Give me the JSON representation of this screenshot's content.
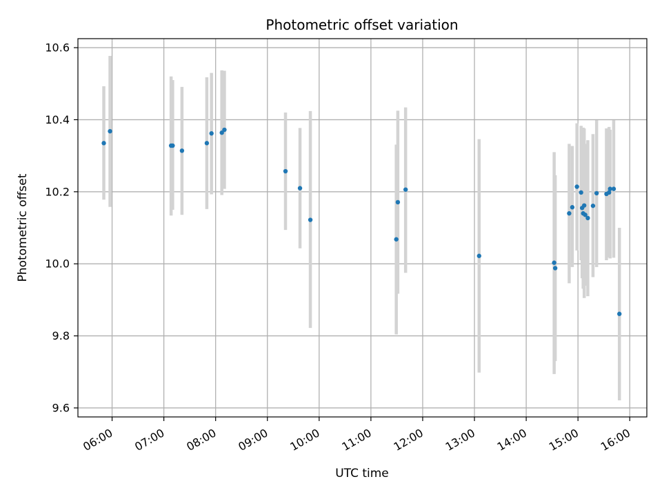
{
  "chart_data": {
    "type": "scatter",
    "title": "Photometric offset variation",
    "xlabel": "UTC time",
    "ylabel": "Photometric offset",
    "x_unit": "hour",
    "xlim": [
      5.34,
      16.33
    ],
    "ylim": [
      9.575,
      10.625
    ],
    "grid": true,
    "legend": "none",
    "x_ticks": [
      {
        "value": 6,
        "label": "06:00"
      },
      {
        "value": 7,
        "label": "07:00"
      },
      {
        "value": 8,
        "label": "08:00"
      },
      {
        "value": 9,
        "label": "09:00"
      },
      {
        "value": 10,
        "label": "10:00"
      },
      {
        "value": 11,
        "label": "11:00"
      },
      {
        "value": 12,
        "label": "12:00"
      },
      {
        "value": 13,
        "label": "13:00"
      },
      {
        "value": 14,
        "label": "14:00"
      },
      {
        "value": 15,
        "label": "15:00"
      },
      {
        "value": 16,
        "label": "16:00"
      }
    ],
    "y_ticks": [
      {
        "value": 9.6,
        "label": "9.6"
      },
      {
        "value": 9.8,
        "label": "9.8"
      },
      {
        "value": 10.0,
        "label": "10.0"
      },
      {
        "value": 10.2,
        "label": "10.2"
      },
      {
        "value": 10.4,
        "label": "10.4"
      },
      {
        "value": 10.6,
        "label": "10.6"
      }
    ],
    "colors": {
      "point": "#1f77b4",
      "error_bar": "#d3d3d3",
      "grid": "#b0b0b0"
    },
    "series": [
      {
        "points": [
          {
            "x": 5.84,
            "y": 10.335,
            "ylow": 10.178,
            "yhigh": 10.493
          },
          {
            "x": 5.96,
            "y": 10.368,
            "ylow": 10.158,
            "yhigh": 10.577
          },
          {
            "x": 7.14,
            "y": 10.328,
            "ylow": 10.134,
            "yhigh": 10.52
          },
          {
            "x": 7.17,
            "y": 10.328,
            "ylow": 10.15,
            "yhigh": 10.51
          },
          {
            "x": 7.35,
            "y": 10.314,
            "ylow": 10.136,
            "yhigh": 10.491
          },
          {
            "x": 7.83,
            "y": 10.335,
            "ylow": 10.152,
            "yhigh": 10.518
          },
          {
            "x": 7.92,
            "y": 10.362,
            "ylow": 10.193,
            "yhigh": 10.53
          },
          {
            "x": 8.12,
            "y": 10.364,
            "ylow": 10.191,
            "yhigh": 10.537
          },
          {
            "x": 8.17,
            "y": 10.372,
            "ylow": 10.208,
            "yhigh": 10.536
          },
          {
            "x": 9.35,
            "y": 10.257,
            "ylow": 10.094,
            "yhigh": 10.42
          },
          {
            "x": 9.63,
            "y": 10.21,
            "ylow": 10.043,
            "yhigh": 10.377
          },
          {
            "x": 9.83,
            "y": 10.122,
            "ylow": 9.822,
            "yhigh": 10.424
          },
          {
            "x": 11.49,
            "y": 10.068,
            "ylow": 9.804,
            "yhigh": 10.331
          },
          {
            "x": 11.52,
            "y": 10.171,
            "ylow": 9.917,
            "yhigh": 10.425
          },
          {
            "x": 11.67,
            "y": 10.206,
            "ylow": 9.975,
            "yhigh": 10.434
          },
          {
            "x": 13.09,
            "y": 10.022,
            "ylow": 9.698,
            "yhigh": 10.346
          },
          {
            "x": 14.54,
            "y": 10.003,
            "ylow": 9.694,
            "yhigh": 10.31
          },
          {
            "x": 14.56,
            "y": 9.988,
            "ylow": 9.73,
            "yhigh": 10.246
          },
          {
            "x": 14.83,
            "y": 10.14,
            "ylow": 9.946,
            "yhigh": 10.333
          },
          {
            "x": 14.89,
            "y": 10.157,
            "ylow": 9.991,
            "yhigh": 10.327
          },
          {
            "x": 14.98,
            "y": 10.214,
            "ylow": 10.037,
            "yhigh": 10.39
          },
          {
            "x": 15.06,
            "y": 10.198,
            "ylow": 10.01,
            "yhigh": 10.383
          },
          {
            "x": 15.08,
            "y": 10.155,
            "ylow": 9.96,
            "yhigh": 10.35
          },
          {
            "x": 15.1,
            "y": 10.14,
            "ylow": 9.931,
            "yhigh": 10.378
          },
          {
            "x": 15.12,
            "y": 10.162,
            "ylow": 9.905,
            "yhigh": 10.376
          },
          {
            "x": 15.14,
            "y": 10.136,
            "ylow": 9.939,
            "yhigh": 10.333
          },
          {
            "x": 15.19,
            "y": 10.127,
            "ylow": 9.91,
            "yhigh": 10.343
          },
          {
            "x": 15.29,
            "y": 10.161,
            "ylow": 9.963,
            "yhigh": 10.36
          },
          {
            "x": 15.36,
            "y": 10.196,
            "ylow": 9.991,
            "yhigh": 10.399
          },
          {
            "x": 15.55,
            "y": 10.194,
            "ylow": 10.01,
            "yhigh": 10.376
          },
          {
            "x": 15.6,
            "y": 10.198,
            "ylow": 10.018,
            "yhigh": 10.38
          },
          {
            "x": 15.62,
            "y": 10.208,
            "ylow": 10.015,
            "yhigh": 10.372
          },
          {
            "x": 15.69,
            "y": 10.208,
            "ylow": 10.017,
            "yhigh": 10.399
          },
          {
            "x": 15.8,
            "y": 9.861,
            "ylow": 9.621,
            "yhigh": 10.1
          }
        ]
      }
    ]
  }
}
